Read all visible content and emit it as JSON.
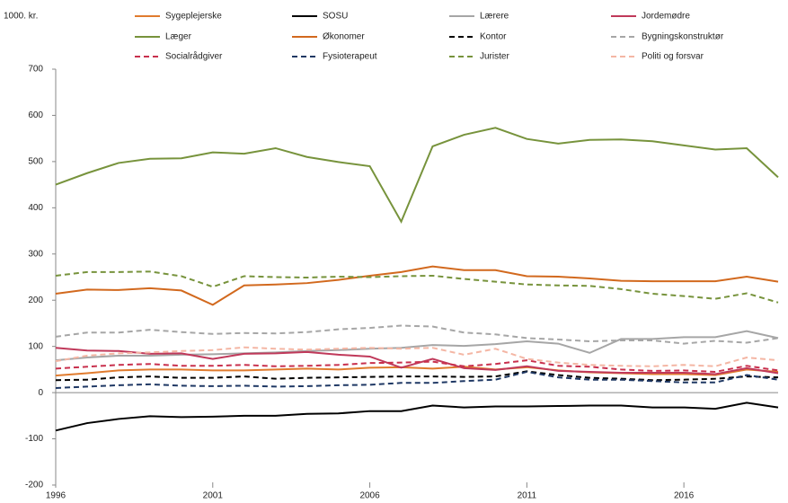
{
  "chart_data": {
    "type": "line",
    "y_label": "1000. kr.",
    "x": [
      1996,
      1997,
      1998,
      1999,
      2000,
      2001,
      2002,
      2003,
      2004,
      2005,
      2006,
      2007,
      2008,
      2009,
      2010,
      2011,
      2012,
      2013,
      2014,
      2015,
      2016,
      2017,
      2018,
      2019
    ],
    "xlim": [
      1996,
      2019
    ],
    "xticks": [
      1996,
      2001,
      2006,
      2011,
      2016
    ],
    "ylim": [
      -200,
      700
    ],
    "yticks": [
      -200,
      -100,
      0,
      100,
      200,
      300,
      400,
      500,
      600,
      700
    ],
    "series": [
      {
        "name": "Sygeplejerske",
        "color": "#e07b2e",
        "dashed": false,
        "values": [
          37,
          42,
          48,
          50,
          50,
          48,
          48,
          50,
          52,
          50,
          54,
          55,
          52,
          56,
          50,
          55,
          48,
          44,
          42,
          40,
          40,
          38,
          50,
          45
        ]
      },
      {
        "name": "SOSU",
        "color": "#000000",
        "dashed": false,
        "values": [
          -82,
          -66,
          -57,
          -51,
          -53,
          -52,
          -50,
          -50,
          -46,
          -45,
          -40,
          -40,
          -28,
          -32,
          -30,
          -30,
          -29,
          -28,
          -28,
          -32,
          -32,
          -35,
          -22,
          -32
        ]
      },
      {
        "name": "Lærere",
        "color": "#a6a6a6",
        "dashed": false,
        "values": [
          70,
          76,
          80,
          80,
          82,
          83,
          85,
          87,
          90,
          92,
          95,
          97,
          103,
          101,
          105,
          111,
          106,
          86,
          116,
          116,
          120,
          120,
          133,
          118
        ]
      },
      {
        "name": "Jordemødre",
        "color": "#c0395a",
        "dashed": false,
        "values": [
          97,
          91,
          90,
          84,
          85,
          73,
          84,
          85,
          88,
          82,
          78,
          54,
          73,
          53,
          49,
          57,
          47,
          45,
          43,
          43,
          43,
          40,
          53,
          42
        ]
      },
      {
        "name": "Læger",
        "color": "#77933c",
        "dashed": false,
        "values": [
          450,
          475,
          497,
          506,
          507,
          520,
          517,
          529,
          510,
          499,
          490,
          370,
          533,
          558,
          573,
          549,
          539,
          547,
          548,
          544,
          535,
          526,
          529,
          466
        ]
      },
      {
        "name": "Økonomer",
        "color": "#d2691e",
        "dashed": false,
        "values": [
          214,
          223,
          222,
          226,
          221,
          190,
          232,
          234,
          237,
          244,
          253,
          261,
          273,
          265,
          265,
          252,
          251,
          247,
          242,
          241,
          241,
          241,
          251,
          240
        ]
      },
      {
        "name": "Kontor",
        "color": "#000000",
        "dashed": true,
        "values": [
          27,
          28,
          33,
          35,
          32,
          32,
          35,
          30,
          32,
          33,
          34,
          35,
          35,
          34,
          35,
          46,
          38,
          32,
          30,
          27,
          28,
          30,
          35,
          33
        ]
      },
      {
        "name": "Bygningskonstruktør",
        "color": "#a6a6a6",
        "dashed": true,
        "values": [
          121,
          130,
          130,
          136,
          131,
          127,
          129,
          128,
          131,
          137,
          140,
          145,
          143,
          130,
          126,
          118,
          115,
          111,
          113,
          113,
          106,
          112,
          108,
          118
        ]
      },
      {
        "name": "Socialrådgiver",
        "color": "#c8304d",
        "dashed": true,
        "values": [
          52,
          56,
          60,
          62,
          58,
          58,
          60,
          57,
          58,
          60,
          64,
          65,
          67,
          57,
          62,
          70,
          58,
          56,
          50,
          47,
          48,
          45,
          58,
          48
        ]
      },
      {
        "name": "Fysioterapeut",
        "color": "#1f3864",
        "dashed": true,
        "values": [
          10,
          13,
          16,
          18,
          15,
          14,
          15,
          13,
          14,
          16,
          17,
          21,
          21,
          25,
          28,
          45,
          33,
          28,
          28,
          25,
          22,
          22,
          38,
          28
        ]
      },
      {
        "name": "Jurister",
        "color": "#77933c",
        "dashed": true,
        "values": [
          253,
          261,
          261,
          262,
          252,
          229,
          252,
          250,
          249,
          251,
          250,
          252,
          253,
          246,
          240,
          234,
          232,
          231,
          224,
          214,
          209,
          203,
          215,
          195
        ]
      },
      {
        "name": "Politi og forsvar",
        "color": "#f4b6a4",
        "dashed": true,
        "values": [
          68,
          80,
          85,
          87,
          90,
          92,
          98,
          95,
          93,
          95,
          97,
          95,
          97,
          82,
          95,
          73,
          65,
          60,
          58,
          57,
          60,
          57,
          76,
          70
        ]
      }
    ]
  }
}
